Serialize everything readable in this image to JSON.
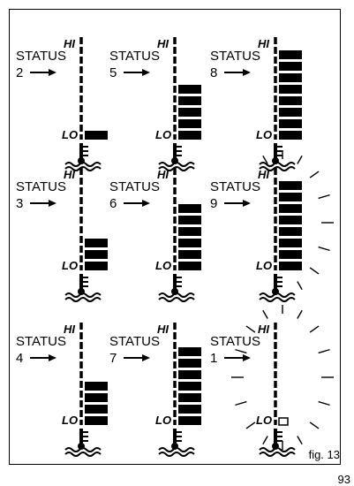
{
  "figure_label": "fig. 13",
  "page_number": "93",
  "gauge_labels": {
    "hi": "HI",
    "lo": "LO"
  },
  "max_segments": 8,
  "panels": [
    {
      "status_word": "STATUS",
      "status_number": "2",
      "level": 1,
      "warning": false,
      "mode": "fill"
    },
    {
      "status_word": "STATUS",
      "status_number": "5",
      "level": 5,
      "warning": false,
      "mode": "fill"
    },
    {
      "status_word": "STATUS",
      "status_number": "8",
      "level": 8,
      "warning": false,
      "mode": "fill"
    },
    {
      "status_word": "STATUS",
      "status_number": "3",
      "level": 3,
      "warning": false,
      "mode": "fill"
    },
    {
      "status_word": "STATUS",
      "status_number": "6",
      "level": 6,
      "warning": false,
      "mode": "fill"
    },
    {
      "status_word": "STATUS",
      "status_number": "9",
      "level": 8,
      "warning": true,
      "mode": "fill"
    },
    {
      "status_word": "STATUS",
      "status_number": "4",
      "level": 4,
      "warning": false,
      "mode": "fill"
    },
    {
      "status_word": "STATUS",
      "status_number": "7",
      "level": 7,
      "warning": false,
      "mode": "fill"
    },
    {
      "status_word": "STATUS",
      "status_number": "1",
      "level": 0,
      "warning": true,
      "mode": "outline"
    }
  ]
}
